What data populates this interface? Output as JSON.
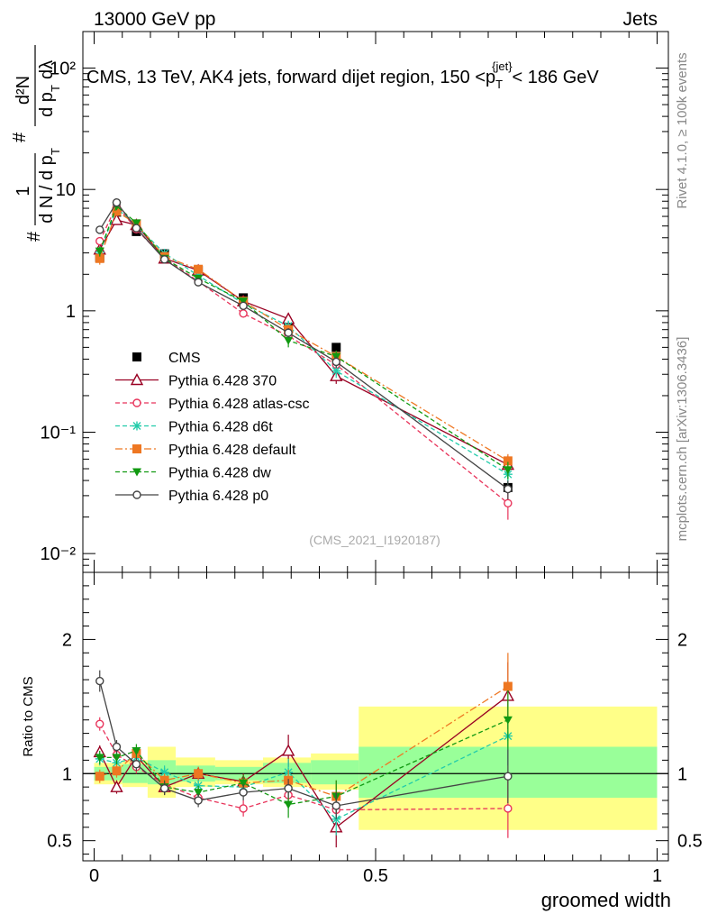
{
  "header": {
    "energy_label": "13000 GeV pp",
    "category_label": "Jets",
    "rivet_label": "Rivet 4.1.0, ≥ 100k events",
    "mcplots_label": "mcplots.cern.ch [arXiv:1306.3436]"
  },
  "chart_data": [
    {
      "type": "line",
      "title": "CMS, 13 TeV, AK4 jets, forward dijet region, 150 <p_T^{jet}< 186 GeV",
      "title_main": "CMS, 13 TeV, AK4 jets, forward dijet region, 150 <p",
      "title_sub": "T",
      "title_sup": "{jet}",
      "title_tail": "< 186 GeV",
      "ylabel": "1/dN/dp_T d^2N/dp_T dλ",
      "ylabel_parts": {
        "frac1_num": "1",
        "frac1_den": "d N / d p",
        "frac2_num": "d²N",
        "frac2_den": "d p",
        "den_tail": "dλ",
        "sub": "T",
        "hash": "#"
      },
      "yscale": "log",
      "ylim": [
        0.007,
        200
      ],
      "xlim": [
        -0.02,
        1.02
      ],
      "ytick_labels": [
        "10⁻²",
        "10⁻¹",
        "1",
        "10",
        "10²"
      ],
      "watermark": "(CMS_2021_I1920187)",
      "legend_position": "lower-left",
      "x": [
        0.01,
        0.04,
        0.075,
        0.125,
        0.185,
        0.265,
        0.345,
        0.43,
        0.735
      ],
      "series": [
        {
          "name": "CMS",
          "color": "#000000",
          "marker": "filled-square",
          "dash": "none",
          "values": [
            2.75,
            6.5,
            4.5,
            2.95,
            2.15,
            1.28,
            0.74,
            0.5,
            0.035
          ],
          "errors": [
            0.15,
            0.3,
            0.2,
            0.12,
            0.1,
            0.07,
            0.06,
            0.04,
            0.004
          ]
        },
        {
          "name": "Pythia 6.428 370",
          "color": "#990022",
          "marker": "open-triangle",
          "dash": "solid",
          "values": [
            3.2,
            5.6,
            5.1,
            2.7,
            2.15,
            1.2,
            0.86,
            0.29,
            0.054
          ],
          "errors": [
            0.3,
            0.3,
            0.2,
            0.15,
            0.1,
            0.08,
            0.1,
            0.04,
            0.01
          ]
        },
        {
          "name": "Pythia 6.428 atlas-csc",
          "color": "#e8335a",
          "marker": "open-circle",
          "dash": "dashed",
          "values": [
            3.75,
            7.4,
            4.7,
            2.7,
            1.75,
            0.95,
            0.62,
            0.36,
            0.026
          ],
          "errors": [
            0.3,
            0.3,
            0.2,
            0.15,
            0.1,
            0.07,
            0.06,
            0.04,
            0.007
          ]
        },
        {
          "name": "Pythia 6.428 d6t",
          "color": "#22ccaa",
          "marker": "star",
          "dash": "dashed",
          "values": [
            3.05,
            7.0,
            5.05,
            2.98,
            1.95,
            1.15,
            0.75,
            0.32,
            0.045
          ],
          "errors": [
            0.3,
            0.3,
            0.2,
            0.15,
            0.1,
            0.07,
            0.08,
            0.04,
            0.008
          ]
        },
        {
          "name": "Pythia 6.428 default",
          "color": "#ee7722",
          "marker": "filled-square",
          "dash": "dashdot",
          "values": [
            2.7,
            6.6,
            5.2,
            2.8,
            2.2,
            1.2,
            0.7,
            0.42,
            0.058
          ],
          "errors": [
            0.3,
            0.3,
            0.2,
            0.15,
            0.1,
            0.07,
            0.07,
            0.05,
            0.008
          ]
        },
        {
          "name": "Pythia 6.428 dw",
          "color": "#119911",
          "marker": "filled-triangle-down",
          "dash": "dashed",
          "values": [
            3.1,
            7.3,
            5.3,
            2.7,
            1.85,
            1.2,
            0.57,
            0.42,
            0.049
          ],
          "errors": [
            0.3,
            0.3,
            0.2,
            0.15,
            0.1,
            0.07,
            0.07,
            0.05,
            0.008
          ]
        },
        {
          "name": "Pythia 6.428 p0",
          "color": "#444444",
          "marker": "open-circle",
          "dash": "solid",
          "values": [
            4.65,
            7.8,
            4.8,
            2.65,
            1.72,
            1.1,
            0.66,
            0.38,
            0.034
          ],
          "errors": [
            0.3,
            0.3,
            0.2,
            0.15,
            0.1,
            0.07,
            0.06,
            0.04,
            0.006
          ]
        }
      ]
    },
    {
      "type": "line",
      "title": "",
      "ylabel": "Ratio to CMS",
      "xlabel": "groomed width",
      "ylim": [
        0.35,
        2.5
      ],
      "xlim": [
        -0.02,
        1.02
      ],
      "yticks": [
        0.5,
        1,
        2
      ],
      "ytick_labels": [
        "0.5",
        "1",
        "2"
      ],
      "xticks": [
        0,
        0.5,
        1
      ],
      "xtick_labels": [
        "0",
        "0.5",
        "1"
      ],
      "reference_line": 1,
      "x": [
        0.01,
        0.04,
        0.075,
        0.125,
        0.185,
        0.265,
        0.345,
        0.43,
        0.735
      ],
      "bin_edges": [
        0.0,
        0.02,
        0.05,
        0.095,
        0.145,
        0.215,
        0.3,
        0.385,
        0.47,
        1.0
      ],
      "band_inner": [
        [
          0.95,
          1.05
        ],
        [
          0.95,
          1.05
        ],
        [
          0.93,
          1.07
        ],
        [
          0.92,
          1.1
        ],
        [
          0.94,
          1.06
        ],
        [
          0.95,
          1.05
        ],
        [
          0.93,
          1.08
        ],
        [
          0.92,
          1.1
        ],
        [
          0.82,
          1.2
        ]
      ],
      "band_outer": [
        [
          0.92,
          1.08
        ],
        [
          0.92,
          1.08
        ],
        [
          0.9,
          1.1
        ],
        [
          0.82,
          1.2
        ],
        [
          0.9,
          1.12
        ],
        [
          0.92,
          1.1
        ],
        [
          0.9,
          1.12
        ],
        [
          0.88,
          1.15
        ],
        [
          0.58,
          1.5
        ]
      ],
      "series": [
        {
          "name": "Pythia 6.428 370",
          "color": "#990022",
          "marker": "open-triangle",
          "dash": "solid",
          "values": [
            1.16,
            0.9,
            1.13,
            0.9,
            1.0,
            0.94,
            1.17,
            0.6,
            1.58
          ],
          "errors": [
            0.05,
            0.05,
            0.05,
            0.06,
            0.05,
            0.06,
            0.12,
            0.15,
            0.25
          ]
        },
        {
          "name": "Pythia 6.428 atlas-csc",
          "color": "#e8335a",
          "marker": "open-circle",
          "dash": "dashed",
          "values": [
            1.37,
            1.14,
            1.05,
            0.92,
            0.82,
            0.74,
            0.84,
            0.73,
            0.74
          ],
          "errors": [
            0.05,
            0.05,
            0.05,
            0.05,
            0.05,
            0.06,
            0.07,
            0.1,
            0.22
          ]
        },
        {
          "name": "Pythia 6.428 d6t",
          "color": "#22ccaa",
          "marker": "star",
          "dash": "dashed",
          "values": [
            1.11,
            1.08,
            1.12,
            1.01,
            0.91,
            0.9,
            1.01,
            0.66,
            1.28
          ],
          "errors": [
            0.05,
            0.05,
            0.05,
            0.05,
            0.05,
            0.06,
            0.1,
            0.12,
            0.22
          ]
        },
        {
          "name": "Pythia 6.428 default",
          "color": "#ee7722",
          "marker": "filled-square",
          "dash": "dashdot",
          "values": [
            0.98,
            1.02,
            1.15,
            0.95,
            1.0,
            0.93,
            0.95,
            0.83,
            1.65
          ],
          "errors": [
            0.05,
            0.05,
            0.05,
            0.05,
            0.05,
            0.06,
            0.08,
            0.12,
            0.25
          ]
        },
        {
          "name": "Pythia 6.428 dw",
          "color": "#119911",
          "marker": "filled-triangle-down",
          "dash": "dashed",
          "values": [
            1.12,
            1.12,
            1.17,
            0.9,
            0.86,
            0.93,
            0.77,
            0.83,
            1.4
          ],
          "errors": [
            0.05,
            0.05,
            0.05,
            0.05,
            0.05,
            0.06,
            0.1,
            0.12,
            0.22
          ]
        },
        {
          "name": "Pythia 6.428 p0",
          "color": "#444444",
          "marker": "open-circle",
          "dash": "solid",
          "values": [
            1.69,
            1.2,
            1.07,
            0.89,
            0.8,
            0.86,
            0.89,
            0.76,
            0.98
          ],
          "errors": [
            0.08,
            0.05,
            0.05,
            0.05,
            0.05,
            0.06,
            0.07,
            0.1,
            0.2
          ]
        }
      ]
    }
  ]
}
